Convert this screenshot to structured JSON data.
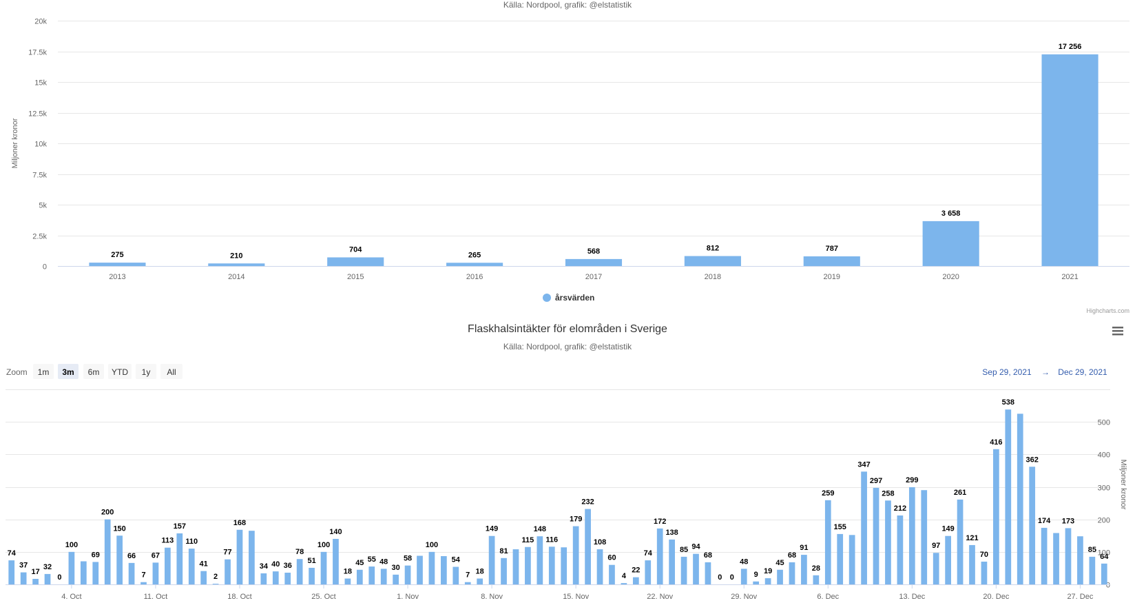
{
  "chart_data": [
    {
      "type": "bar",
      "subtitle": "Källa: Nordpool, grafik: @elstatistik",
      "ylabel": "Miljoner kronor",
      "ylim": [
        0,
        20000
      ],
      "yticks": [
        "0",
        "2.5k",
        "5k",
        "7.5k",
        "10k",
        "12.5k",
        "15k",
        "17.5k",
        "20k"
      ],
      "categories": [
        "2013",
        "2014",
        "2015",
        "2016",
        "2017",
        "2018",
        "2019",
        "2020",
        "2021"
      ],
      "series": [
        {
          "name": "årsvärden",
          "values": [
            275,
            210,
            704,
            265,
            568,
            812,
            787,
            3658,
            17256
          ]
        }
      ],
      "data_labels": [
        "275",
        "210",
        "704",
        "265",
        "568",
        "812",
        "787",
        "3 658",
        "17 256"
      ],
      "legend_position": "bottom-center",
      "color": "#7cb5ec",
      "credits": "Highcharts.com"
    },
    {
      "type": "bar",
      "title": "Flaskhalsintäkter för elområden i Sverige",
      "subtitle": "Källa: Nordpool, grafik: @elstatistik",
      "ylabel": "Miljoner kronor",
      "ylim": [
        0,
        600
      ],
      "yticks": [
        "0",
        "100",
        "200",
        "300",
        "400",
        "500"
      ],
      "yaxis_side": "right",
      "x_start": "2021-09-29",
      "x_tick_labels": [
        "4. Oct",
        "11. Oct",
        "18. Oct",
        "25. Oct",
        "1. Nov",
        "8. Nov",
        "15. Nov",
        "22. Nov",
        "29. Nov",
        "6. Dec",
        "13. Dec",
        "20. Dec",
        "27. Dec"
      ],
      "values": [
        74,
        37,
        17,
        32,
        0,
        100,
        71,
        69,
        200,
        150,
        66,
        7,
        67,
        113,
        157,
        110,
        41,
        2,
        77,
        168,
        165,
        34,
        40,
        36,
        78,
        51,
        100,
        140,
        18,
        45,
        55,
        48,
        30,
        58,
        88,
        100,
        87,
        54,
        7,
        18,
        149,
        81,
        108,
        115,
        148,
        116,
        114,
        179,
        232,
        108,
        60,
        4,
        22,
        74,
        172,
        138,
        85,
        94,
        68,
        0,
        0,
        48,
        9,
        19,
        45,
        68,
        91,
        28,
        259,
        155,
        152,
        347,
        297,
        258,
        212,
        299,
        290,
        97,
        149,
        261,
        121,
        70,
        416,
        538,
        525,
        362,
        174,
        158,
        173,
        148,
        85,
        64
      ],
      "data_labels_shown": [
        74,
        37,
        17,
        32,
        0,
        100,
        null,
        69,
        200,
        150,
        66,
        7,
        67,
        113,
        157,
        110,
        41,
        2,
        77,
        168,
        null,
        34,
        40,
        36,
        78,
        51,
        100,
        140,
        18,
        45,
        55,
        48,
        30,
        58,
        null,
        100,
        null,
        54,
        7,
        18,
        149,
        81,
        null,
        115,
        148,
        116,
        null,
        179,
        232,
        108,
        60,
        4,
        22,
        74,
        172,
        138,
        85,
        94,
        68,
        0,
        0,
        48,
        9,
        19,
        45,
        68,
        91,
        28,
        259,
        155,
        null,
        347,
        297,
        258,
        212,
        299,
        null,
        97,
        149,
        261,
        121,
        70,
        416,
        538,
        null,
        362,
        174,
        null,
        173,
        null,
        85,
        64
      ],
      "color": "#7cb5ec",
      "range_selector": {
        "zoom_label": "Zoom",
        "buttons": [
          "1m",
          "3m",
          "6m",
          "YTD",
          "1y",
          "All"
        ],
        "selected": "3m",
        "from": "Sep 29, 2021",
        "separator": "→",
        "to": "Dec 29, 2021"
      },
      "menu_icon": "hamburger-menu-icon"
    }
  ]
}
